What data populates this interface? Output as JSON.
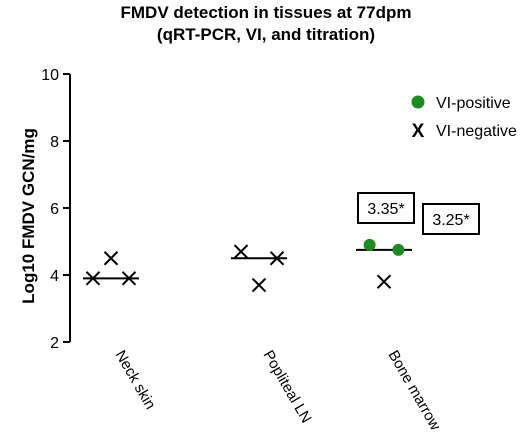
{
  "chart_data": {
    "type": "scatter",
    "title_lines": [
      "FMDV detection in tissues at 77dpm",
      "(qRT-PCR, VI, and titration)"
    ],
    "xlabel": "",
    "ylabel": "Log10 FMDV GCN/mg",
    "ylim": [
      2,
      10
    ],
    "yticks": [
      2,
      4,
      6,
      8,
      10
    ],
    "grid": false,
    "legend_position": "top-right",
    "categories": [
      "Neck skin",
      "Popliteal LN",
      "Bone marrow"
    ],
    "series": [
      {
        "name": "VI-positive",
        "marker": "circle",
        "color": "#1f8a1f",
        "points": [
          {
            "category": "Bone marrow",
            "offset": -0.2,
            "y": 4.9
          },
          {
            "category": "Bone marrow",
            "offset": 0.2,
            "y": 4.75
          }
        ]
      },
      {
        "name": "VI-negative",
        "marker": "x",
        "color": "#000000",
        "points": [
          {
            "category": "Neck skin",
            "offset": 0,
            "y": 4.5
          },
          {
            "category": "Neck skin",
            "offset": -0.25,
            "y": 3.9
          },
          {
            "category": "Neck skin",
            "offset": 0.25,
            "y": 3.9
          },
          {
            "category": "Popliteal LN",
            "offset": -0.25,
            "y": 4.7
          },
          {
            "category": "Popliteal LN",
            "offset": 0.25,
            "y": 4.5
          },
          {
            "category": "Popliteal LN",
            "offset": 0,
            "y": 3.7
          },
          {
            "category": "Bone marrow",
            "offset": 0,
            "y": 3.8
          }
        ]
      }
    ],
    "medians": [
      {
        "category": "Neck skin",
        "y": 3.9
      },
      {
        "category": "Popliteal LN",
        "y": 4.5
      },
      {
        "category": "Bone marrow",
        "y": 4.75
      }
    ],
    "annotations": [
      {
        "text": "3.35*",
        "category": "Bone marrow",
        "offset": -0.2,
        "y": 4.9
      },
      {
        "text": "3.25*",
        "category": "Bone marrow",
        "offset": 0.2,
        "y": 4.75
      }
    ]
  }
}
